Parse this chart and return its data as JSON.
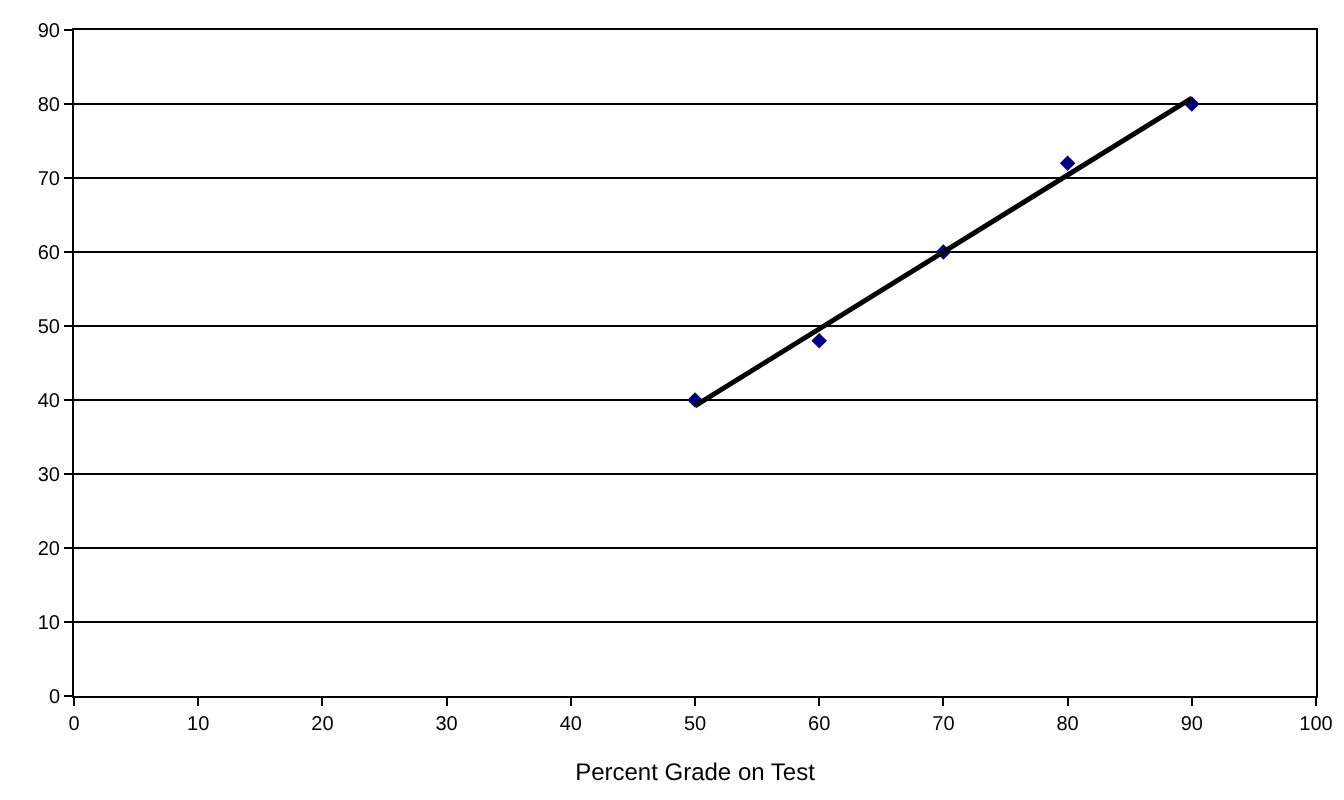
{
  "chart_data": {
    "type": "scatter",
    "xlabel": "Percent Grade on Test",
    "x": [
      50,
      60,
      70,
      80,
      90
    ],
    "series": [
      {
        "color": "#000080",
        "values": [
          40,
          48,
          60,
          72,
          80
        ],
        "marker": "diamond"
      },
      {
        "type": "line",
        "color": "#000000",
        "x": [
          50,
          90
        ],
        "values": [
          39.2,
          80.8
        ],
        "marker": "none"
      }
    ],
    "xlim": [
      0,
      100
    ],
    "xticks": [
      0,
      10,
      20,
      30,
      40,
      50,
      60,
      70,
      80,
      90,
      100
    ],
    "ylim": [
      0,
      90
    ],
    "yticks": [
      0,
      10,
      20,
      30,
      40,
      50,
      60,
      70,
      80,
      90
    ],
    "grid": "y"
  }
}
